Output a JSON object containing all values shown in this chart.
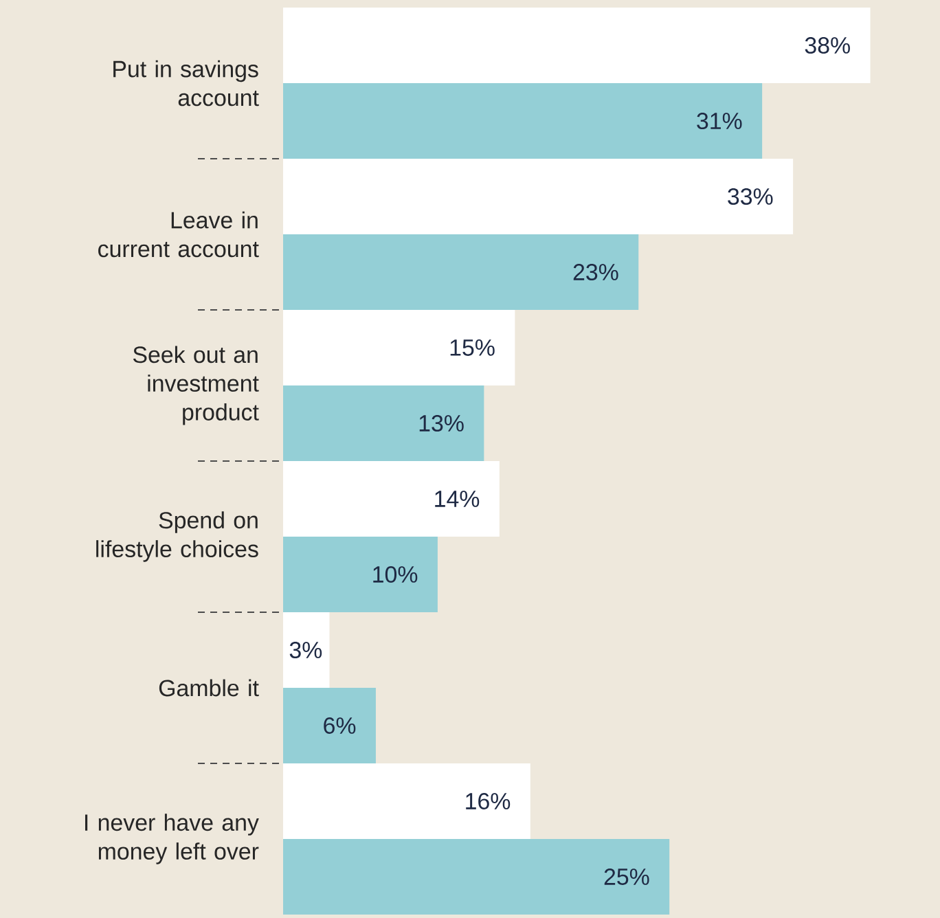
{
  "chart_data": {
    "type": "bar",
    "orientation": "horizontal",
    "tick_labels": "y",
    "categories": [
      "Put in savings account",
      "Leave in current account",
      "Seek out an investment product",
      "Spend on lifestyle choices",
      "Gamble it",
      "I never have any money left over"
    ],
    "series": [
      {
        "color": "#ffffff",
        "values": [
          38,
          33,
          15,
          14,
          3,
          16
        ],
        "value_labels": [
          "38%",
          "33%",
          "15%",
          "14%",
          "3%",
          "16%"
        ]
      },
      {
        "color": "#94cfd6",
        "values": [
          31,
          23,
          13,
          10,
          6,
          25
        ],
        "value_labels": [
          "31%",
          "23%",
          "13%",
          "10%",
          "6%",
          "25%"
        ]
      }
    ]
  }
}
